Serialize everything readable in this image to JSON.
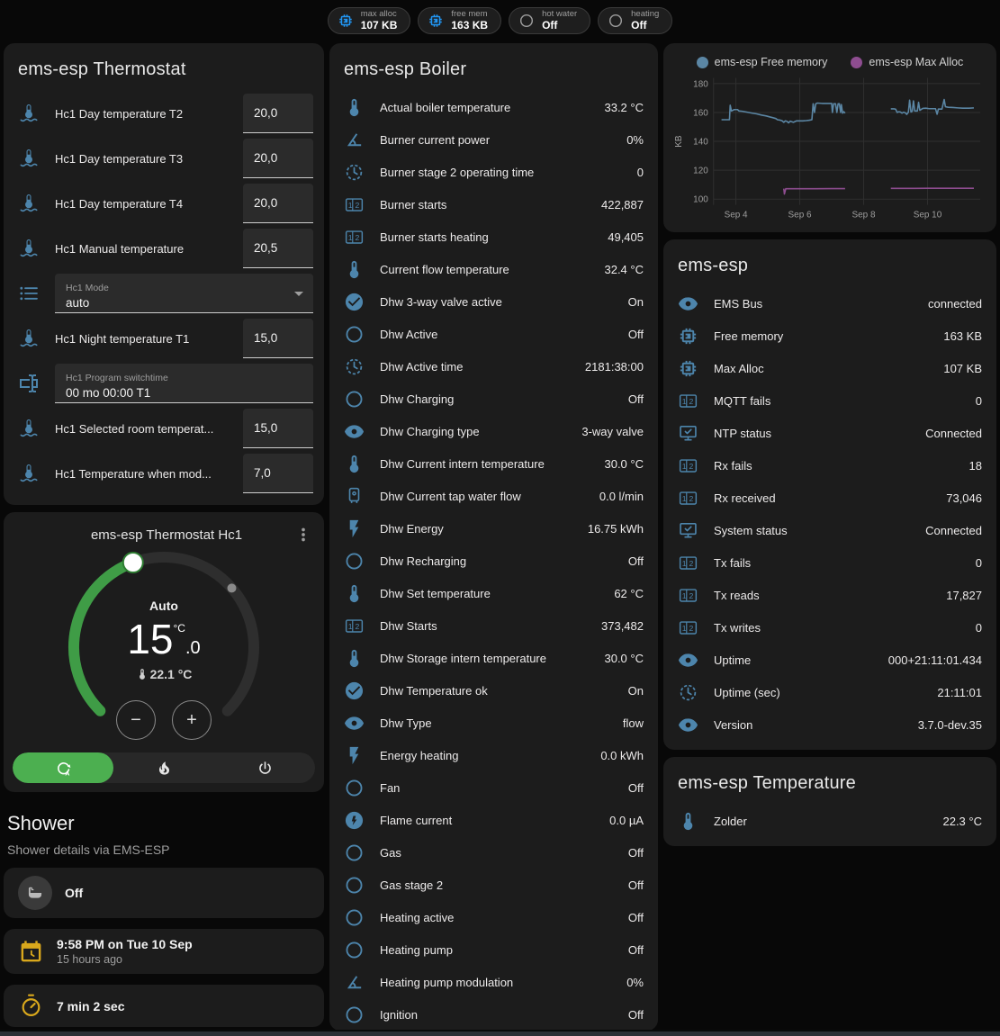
{
  "badges": [
    {
      "icon": "chip",
      "tone": "bright",
      "label": "max alloc",
      "value": "107 KB"
    },
    {
      "icon": "chip",
      "tone": "bright",
      "label": "free mem",
      "value": "163 KB"
    },
    {
      "icon": "circle",
      "tone": "gray",
      "label": "hot water",
      "value": "Off"
    },
    {
      "icon": "circle",
      "tone": "gray",
      "label": "heating",
      "value": "Off"
    }
  ],
  "thermostat_card": {
    "title": "ems-esp Thermostat",
    "rows": [
      {
        "type": "number",
        "icon": "thermometer-water",
        "name": "Hc1 Day temperature T2",
        "value": "20,0"
      },
      {
        "type": "number",
        "icon": "thermometer-water",
        "name": "Hc1 Day temperature T3",
        "value": "20,0"
      },
      {
        "type": "number",
        "icon": "thermometer-water",
        "name": "Hc1 Day temperature T4",
        "value": "20,0"
      },
      {
        "type": "number",
        "icon": "thermometer-water",
        "name": "Hc1 Manual temperature",
        "value": "20,5"
      },
      {
        "type": "select",
        "icon": "list",
        "label": "Hc1 Mode",
        "value": "auto"
      },
      {
        "type": "number",
        "icon": "thermometer-water",
        "name": "Hc1 Night temperature T1",
        "value": "15,0"
      },
      {
        "type": "text",
        "icon": "form-textbox",
        "label": "Hc1 Program switchtime",
        "value": "00 mo 00:00 T1"
      },
      {
        "type": "number",
        "icon": "thermometer-water",
        "name": "Hc1 Selected room temperat...",
        "value": "15,0"
      },
      {
        "type": "number",
        "icon": "thermometer-water",
        "name": "Hc1 Temperature when mod...",
        "value": "7,0"
      }
    ]
  },
  "dial_card": {
    "title": "ems-esp Thermostat Hc1",
    "mode_label": "Auto",
    "target_int": "15",
    "target_dec": ".0",
    "target_unit": "°C",
    "current": "22.1 °C",
    "minus_label": "−",
    "plus_label": "+",
    "modes": [
      {
        "icon": "thermostat-auto",
        "name": "auto",
        "active": true
      },
      {
        "icon": "fire",
        "name": "heat",
        "active": false
      },
      {
        "icon": "power",
        "name": "off",
        "active": false
      }
    ]
  },
  "shower": {
    "title": "Shower",
    "subtitle": "Shower details via EMS-ESP",
    "cards": [
      {
        "icon": "bathtub",
        "style": "circle",
        "value": "Off"
      },
      {
        "icon": "calendar-clock",
        "style": "plain",
        "value": "9:58 PM on Tue 10 Sep",
        "secondary": "15 hours ago"
      },
      {
        "icon": "timer",
        "style": "plain",
        "value": "7 min 2 sec"
      },
      {
        "icon": "snowflake-alert",
        "style": "centered"
      }
    ]
  },
  "boiler_card": {
    "title": "ems-esp Boiler",
    "rows": [
      {
        "icon": "thermometer",
        "name": "Actual boiler temperature",
        "value": "33.2 °C"
      },
      {
        "icon": "angle-acute",
        "name": "Burner current power",
        "value": "0%"
      },
      {
        "icon": "clock",
        "name": "Burner stage 2 operating time",
        "value": "0"
      },
      {
        "icon": "counter",
        "name": "Burner starts",
        "value": "422,887"
      },
      {
        "icon": "counter",
        "name": "Burner starts heating",
        "value": "49,405"
      },
      {
        "icon": "thermometer",
        "name": "Current flow temperature",
        "value": "32.4 °C"
      },
      {
        "icon": "check-circle",
        "name": "Dhw 3-way valve active",
        "value": "On"
      },
      {
        "icon": "circle",
        "name": "Dhw Active",
        "value": "Off"
      },
      {
        "icon": "clock",
        "name": "Dhw Active time",
        "value": "2181:38:00"
      },
      {
        "icon": "circle",
        "name": "Dhw Charging",
        "value": "Off"
      },
      {
        "icon": "eye",
        "name": "Dhw Charging type",
        "value": "3-way valve"
      },
      {
        "icon": "thermometer",
        "name": "Dhw Current intern temperature",
        "value": "30.0 °C"
      },
      {
        "icon": "water-heater",
        "name": "Dhw Current tap water flow",
        "value": "0.0 l/min"
      },
      {
        "icon": "flash",
        "name": "Dhw Energy",
        "value": "16.75 kWh"
      },
      {
        "icon": "circle",
        "name": "Dhw Recharging",
        "value": "Off"
      },
      {
        "icon": "thermometer",
        "name": "Dhw Set temperature",
        "value": "62 °C"
      },
      {
        "icon": "counter",
        "name": "Dhw Starts",
        "value": "373,482"
      },
      {
        "icon": "thermometer",
        "name": "Dhw Storage intern temperature",
        "value": "30.0 °C"
      },
      {
        "icon": "check-circle",
        "name": "Dhw Temperature ok",
        "value": "On"
      },
      {
        "icon": "eye",
        "name": "Dhw Type",
        "value": "flow"
      },
      {
        "icon": "flash",
        "name": "Energy heating",
        "value": "0.0 kWh"
      },
      {
        "icon": "circle",
        "name": "Fan",
        "value": "Off"
      },
      {
        "icon": "flash-circle",
        "name": "Flame current",
        "value": "0.0 µA"
      },
      {
        "icon": "circle",
        "name": "Gas",
        "value": "Off"
      },
      {
        "icon": "circle",
        "name": "Gas stage 2",
        "value": "Off"
      },
      {
        "icon": "circle",
        "name": "Heating active",
        "value": "Off"
      },
      {
        "icon": "circle",
        "name": "Heating pump",
        "value": "Off"
      },
      {
        "icon": "angle-acute",
        "name": "Heating pump modulation",
        "value": "0%"
      },
      {
        "icon": "circle",
        "name": "Ignition",
        "value": "Off"
      }
    ]
  },
  "emsesp_card": {
    "title": "ems-esp",
    "rows": [
      {
        "icon": "eye",
        "name": "EMS Bus",
        "value": "connected"
      },
      {
        "icon": "chip",
        "name": "Free memory",
        "value": "163 KB"
      },
      {
        "icon": "chip",
        "name": "Max Alloc",
        "value": "107 KB"
      },
      {
        "icon": "counter",
        "name": "MQTT fails",
        "value": "0"
      },
      {
        "icon": "monitor-check",
        "name": "NTP status",
        "value": "Connected"
      },
      {
        "icon": "counter",
        "name": "Rx fails",
        "value": "18"
      },
      {
        "icon": "counter",
        "name": "Rx received",
        "value": "73,046"
      },
      {
        "icon": "monitor-check",
        "name": "System status",
        "value": "Connected"
      },
      {
        "icon": "counter",
        "name": "Tx fails",
        "value": "0"
      },
      {
        "icon": "counter",
        "name": "Tx reads",
        "value": "17,827"
      },
      {
        "icon": "counter",
        "name": "Tx writes",
        "value": "0"
      },
      {
        "icon": "eye",
        "name": "Uptime",
        "value": "000+21:11:01.434"
      },
      {
        "icon": "clock",
        "name": "Uptime (sec)",
        "value": "21:11:01"
      },
      {
        "icon": "eye",
        "name": "Version",
        "value": "3.7.0-dev.35"
      }
    ]
  },
  "temperature_card": {
    "title": "ems-esp Temperature",
    "rows": [
      {
        "icon": "thermometer",
        "name": "Zolder",
        "value": "22.3 °C"
      }
    ]
  },
  "chart_data": {
    "type": "line",
    "title": "",
    "xlabel": "",
    "ylabel": "KB",
    "ylim": [
      96,
      184
    ],
    "xlim": [
      3.3,
      11.65
    ],
    "yticks": [
      100,
      120,
      140,
      160,
      180
    ],
    "xticks": [
      {
        "x": 4,
        "label": "Sep 4"
      },
      {
        "x": 6,
        "label": "Sep 6"
      },
      {
        "x": 8,
        "label": "Sep 8"
      },
      {
        "x": 10,
        "label": "Sep 10"
      }
    ],
    "grid": true,
    "legend_position": "top",
    "series": [
      {
        "name": "ems-esp Free memory",
        "color": "#5b86a4",
        "segments": [
          [
            [
              3.55,
              155
            ],
            [
              3.8,
              155
            ],
            [
              3.82,
              165
            ],
            [
              3.86,
              161
            ],
            [
              3.95,
              162
            ],
            [
              4.05,
              162
            ],
            [
              4.1,
              161
            ],
            [
              4.2,
              160.8
            ],
            [
              4.35,
              160.2
            ],
            [
              4.5,
              159.6
            ],
            [
              4.65,
              159
            ],
            [
              4.8,
              158.2
            ],
            [
              4.95,
              157.6
            ],
            [
              5.05,
              157
            ],
            [
              5.15,
              156.4
            ],
            [
              5.25,
              155.8
            ],
            [
              5.3,
              155
            ],
            [
              5.4,
              154.6
            ],
            [
              5.45,
              154.2
            ],
            [
              5.5,
              153.2
            ],
            [
              5.55,
              154.2
            ],
            [
              5.6,
              153.8
            ],
            [
              5.65,
              152.8
            ],
            [
              5.7,
              154
            ],
            [
              5.8,
              153.2
            ],
            [
              5.9,
              154.2
            ],
            [
              6.1,
              154.2
            ],
            [
              6.2,
              154.4
            ],
            [
              6.3,
              154.6
            ],
            [
              6.38,
              155
            ],
            [
              6.42,
              166
            ],
            [
              6.46,
              160
            ],
            [
              6.5,
              166
            ],
            [
              6.55,
              166.5
            ],
            [
              6.7,
              166.3
            ],
            [
              6.85,
              166.3
            ],
            [
              7.0,
              166.3
            ],
            [
              7.02,
              160
            ],
            [
              7.06,
              166
            ],
            [
              7.12,
              166
            ],
            [
              7.16,
              160
            ],
            [
              7.2,
              166
            ],
            [
              7.24,
              166
            ],
            [
              7.28,
              160
            ],
            [
              7.3,
              165.5
            ],
            [
              7.34,
              159.5
            ],
            [
              7.38,
              160.5
            ],
            [
              7.42,
              159.5
            ]
          ],
          [
            [
              8.85,
              162.5
            ],
            [
              8.95,
              162.5
            ],
            [
              9.0,
              162.3
            ],
            [
              9.05,
              160
            ],
            [
              9.1,
              160.5
            ],
            [
              9.15,
              160.3
            ],
            [
              9.2,
              159.5
            ],
            [
              9.25,
              160.2
            ],
            [
              9.3,
              159.8
            ],
            [
              9.35,
              158.7
            ],
            [
              9.4,
              160.2
            ],
            [
              9.44,
              168.5
            ],
            [
              9.48,
              160.3
            ],
            [
              9.52,
              160.8
            ],
            [
              9.56,
              168
            ],
            [
              9.6,
              161
            ],
            [
              9.68,
              161
            ],
            [
              9.72,
              167
            ],
            [
              9.76,
              161.5
            ],
            [
              9.85,
              162.8
            ],
            [
              9.95,
              163
            ],
            [
              10.05,
              162.6
            ],
            [
              10.25,
              162.6
            ],
            [
              10.3,
              158.8
            ],
            [
              10.34,
              162.4
            ],
            [
              10.45,
              162.4
            ],
            [
              10.52,
              169
            ],
            [
              10.56,
              164
            ],
            [
              10.65,
              163.6
            ],
            [
              10.8,
              163.4
            ],
            [
              10.95,
              163.2
            ],
            [
              11.1,
              163
            ],
            [
              11.3,
              163
            ],
            [
              11.45,
              163.2
            ]
          ]
        ]
      },
      {
        "name": "ems-esp Max Alloc",
        "color": "#8e4d90",
        "segments": [
          [
            [
              5.5,
              107.3
            ],
            [
              5.52,
              103.5
            ],
            [
              5.56,
              107.2
            ],
            [
              6.0,
              107.2
            ],
            [
              6.5,
              107.2
            ],
            [
              7.0,
              107.3
            ],
            [
              7.42,
              107.3
            ]
          ],
          [
            [
              8.85,
              107.4
            ],
            [
              9.5,
              107.4
            ],
            [
              10.0,
              107.5
            ],
            [
              10.5,
              107.5
            ],
            [
              11.0,
              107.5
            ],
            [
              11.45,
              107.5
            ]
          ]
        ]
      }
    ]
  },
  "colors": {
    "background": "#080808",
    "card": "#1c1c1c",
    "icon_blue": "#4d85ac",
    "badge_blue": "#2196f3",
    "accent_green": "#4caf50",
    "warning_yellow": "#d9a81c",
    "text_secondary": "#9e9e9e"
  }
}
